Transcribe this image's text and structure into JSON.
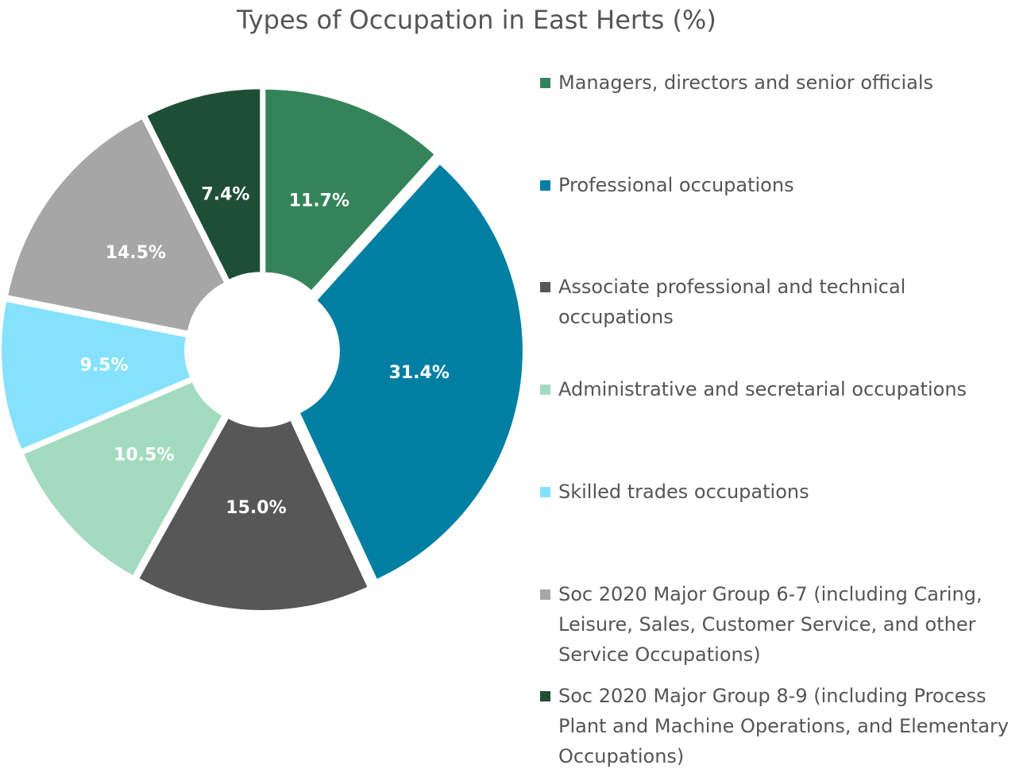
{
  "chart_data": {
    "type": "pie",
    "title": "Types of Occupation in East Herts (%)",
    "categories": [
      "Managers, directors and senior officials",
      "Professional occupations",
      "Associate professional and technical occupations",
      "Administrative and secretarial occupations",
      "Skilled trades occupations",
      "Soc 2020 Major Group 6-7 (including Caring, Leisure, Sales, Customer Service, and other Service Occupations)",
      "Soc 2020 Major Group 8-9 (including Process Plant and Machine Operations, and Elementary Occupations)"
    ],
    "values": [
      11.7,
      31.4,
      15.0,
      10.5,
      9.5,
      14.5,
      7.4
    ],
    "value_labels": [
      "11.7%",
      "31.4%",
      "15.0%",
      "10.5%",
      "9.5%",
      "14.5%",
      "7.4%"
    ],
    "colors": [
      "#358459",
      "#007fa3",
      "#575757",
      "#a3dbbf",
      "#85e1fc",
      "#a6a6a6",
      "#1f4e36"
    ],
    "legend": "right"
  }
}
